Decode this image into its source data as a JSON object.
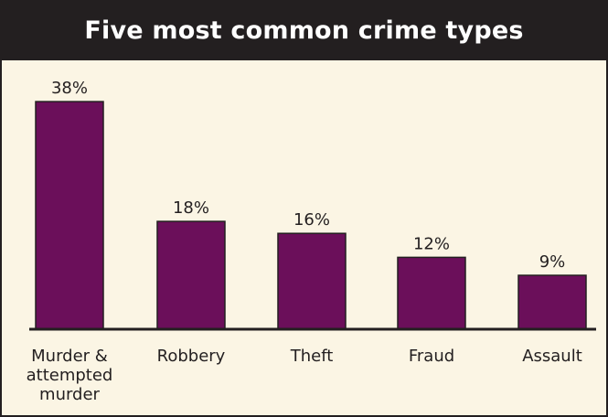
{
  "chart_data": {
    "type": "bar",
    "title": "Five most common crime types",
    "categories": [
      [
        "Murder &",
        "attempted",
        "murder"
      ],
      [
        "Robbery"
      ],
      [
        "Theft"
      ],
      [
        "Fraud"
      ],
      [
        "Assault"
      ]
    ],
    "values": [
      38,
      18,
      16,
      12,
      9
    ],
    "value_labels": [
      "38%",
      "18%",
      "16%",
      "12%",
      "9%"
    ],
    "xlabel": "",
    "ylabel": "",
    "ylim": [
      0,
      40
    ],
    "grid": false,
    "legend": "none",
    "colors": {
      "bar": "#6b0f5a",
      "background": "#fbf5e4",
      "header": "#231f20",
      "header_text": "#ffffff"
    }
  }
}
